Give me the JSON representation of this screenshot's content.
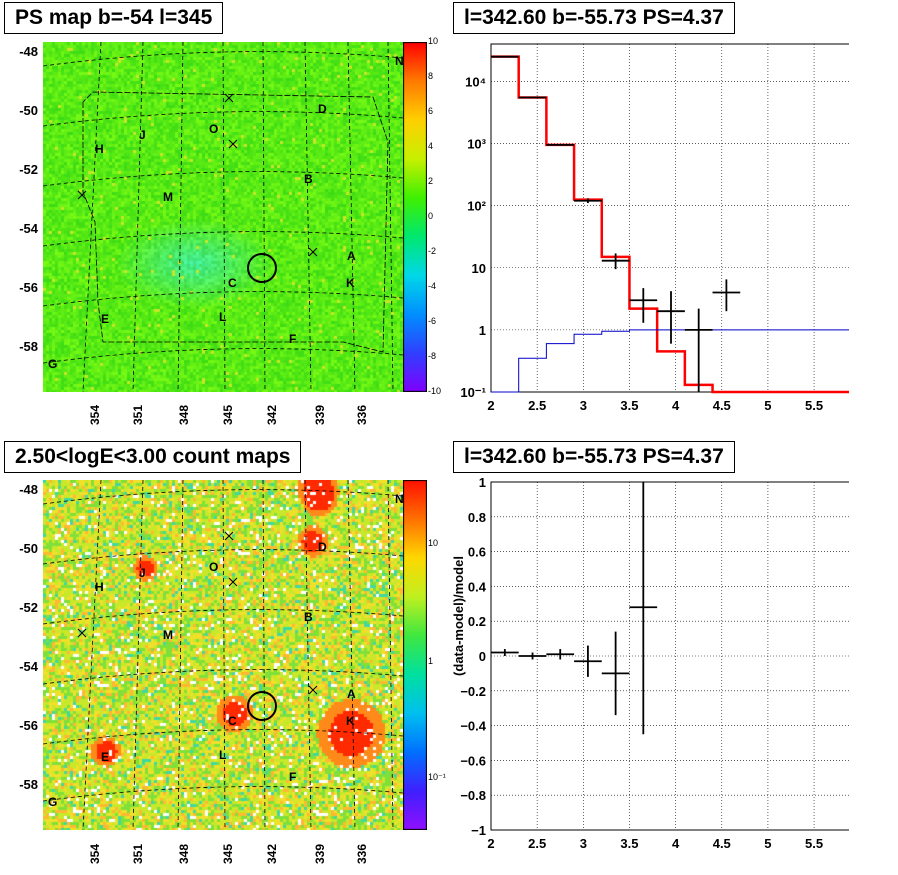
{
  "panels": {
    "tl_title": "PS map b=-54 l=345",
    "tr_title": "l=342.60 b=-55.73 PS=4.37",
    "bl_title": "2.50<logE<3.00 count maps",
    "br_title": "l=342.60 b=-55.73 PS=4.37"
  },
  "map": {
    "y_ticks": [
      "-48",
      "-50",
      "-52",
      "-54",
      "-56",
      "-58"
    ],
    "x_ticks": [
      "354",
      "351",
      "348",
      "345",
      "342",
      "339",
      "336"
    ],
    "source_labels": [
      "N",
      "D",
      "O",
      "J",
      "H",
      "B",
      "M",
      "A",
      "K",
      "C",
      "L",
      "E",
      "F",
      "G"
    ],
    "ps_colorbar_ticks": [
      "10",
      "8",
      "6",
      "4",
      "2",
      "0",
      "-2",
      "-4",
      "-6",
      "-8",
      "-10"
    ],
    "count_colorbar_ticks": [
      "10",
      "1",
      "10⁻¹"
    ]
  },
  "chart_data": [
    {
      "type": "step-histogram",
      "panel": "top-right",
      "title": "l=342.60 b=-55.73 PS=4.37",
      "xlabel": "",
      "ylabel": "",
      "xlim": [
        2,
        5.9
      ],
      "ylim": [
        0.1,
        40000
      ],
      "yscale": "log",
      "grid": true,
      "x_ticks": [
        "2",
        "2.5",
        "3",
        "3.5",
        "4",
        "4.5",
        "5",
        "5.5"
      ],
      "y_ticks": [
        "10⁻¹",
        "1",
        "10",
        "10²",
        "10³",
        "10⁴"
      ],
      "series": [
        {
          "color": "#ff0000",
          "bins": [
            2.0,
            2.3,
            2.6,
            2.9,
            3.2,
            3.5,
            3.8,
            4.1,
            4.4,
            5.9
          ],
          "values": [
            25000,
            5500,
            950,
            125,
            15,
            2.2,
            0.45,
            0.13,
            0.1
          ]
        },
        {
          "color": "#0000cc",
          "bins": [
            2.0,
            2.3,
            2.6,
            2.9,
            3.2,
            3.5,
            3.8,
            4.1,
            4.4,
            5.9
          ],
          "values": [
            0.1,
            0.35,
            0.6,
            0.85,
            0.95,
            1.0,
            1.0,
            1.0,
            1.0
          ]
        },
        {
          "color": "#000000",
          "points": [
            {
              "x": 2.15,
              "y": 25000,
              "xerr": 0.15,
              "ylo": 24800,
              "yhi": 25200
            },
            {
              "x": 2.45,
              "y": 5500,
              "xerr": 0.15,
              "ylo": 5420,
              "yhi": 5580
            },
            {
              "x": 2.75,
              "y": 950,
              "xerr": 0.15,
              "ylo": 920,
              "yhi": 980
            },
            {
              "x": 3.05,
              "y": 120,
              "xerr": 0.15,
              "ylo": 110,
              "yhi": 131
            },
            {
              "x": 3.35,
              "y": 13,
              "xerr": 0.15,
              "ylo": 9.5,
              "yhi": 17
            },
            {
              "x": 3.65,
              "y": 3,
              "xerr": 0.15,
              "ylo": 1.3,
              "yhi": 4.7
            },
            {
              "x": 3.95,
              "y": 2,
              "xerr": 0.15,
              "ylo": 0.6,
              "yhi": 4.2
            },
            {
              "x": 4.25,
              "y": 1,
              "xerr": 0.15,
              "ylo": 0.1,
              "yhi": 2.2
            },
            {
              "x": 4.55,
              "y": 4,
              "xerr": 0.15,
              "ylo": 2,
              "yhi": 6.5
            }
          ]
        }
      ]
    },
    {
      "type": "scatter",
      "panel": "bottom-right",
      "title": "l=342.60 b=-55.73 PS=4.37",
      "xlabel": "",
      "ylabel": "(data-model)/model",
      "xlim": [
        2,
        5.9
      ],
      "ylim": [
        -1,
        1
      ],
      "grid": true,
      "x_ticks": [
        "2",
        "2.5",
        "3",
        "3.5",
        "4",
        "4.5",
        "5",
        "5.5"
      ],
      "y_ticks": [
        "−1",
        "−0.8",
        "−0.6",
        "−0.4",
        "−0.2",
        "0",
        "0.2",
        "0.4",
        "0.6",
        "0.8",
        "1"
      ],
      "points": [
        {
          "x": 2.15,
          "y": 0.02,
          "xerr": 0.15,
          "ylo": 0.0,
          "yhi": 0.04
        },
        {
          "x": 2.45,
          "y": 0.0,
          "xerr": 0.15,
          "ylo": -0.02,
          "yhi": 0.02
        },
        {
          "x": 2.75,
          "y": 0.01,
          "xerr": 0.15,
          "ylo": -0.02,
          "yhi": 0.04
        },
        {
          "x": 3.05,
          "y": -0.03,
          "xerr": 0.15,
          "ylo": -0.12,
          "yhi": 0.06
        },
        {
          "x": 3.35,
          "y": -0.1,
          "xerr": 0.15,
          "ylo": -0.34,
          "yhi": 0.14
        },
        {
          "x": 3.65,
          "y": 0.28,
          "xerr": 0.15,
          "ylo": -0.45,
          "yhi": 1.0
        }
      ]
    }
  ]
}
